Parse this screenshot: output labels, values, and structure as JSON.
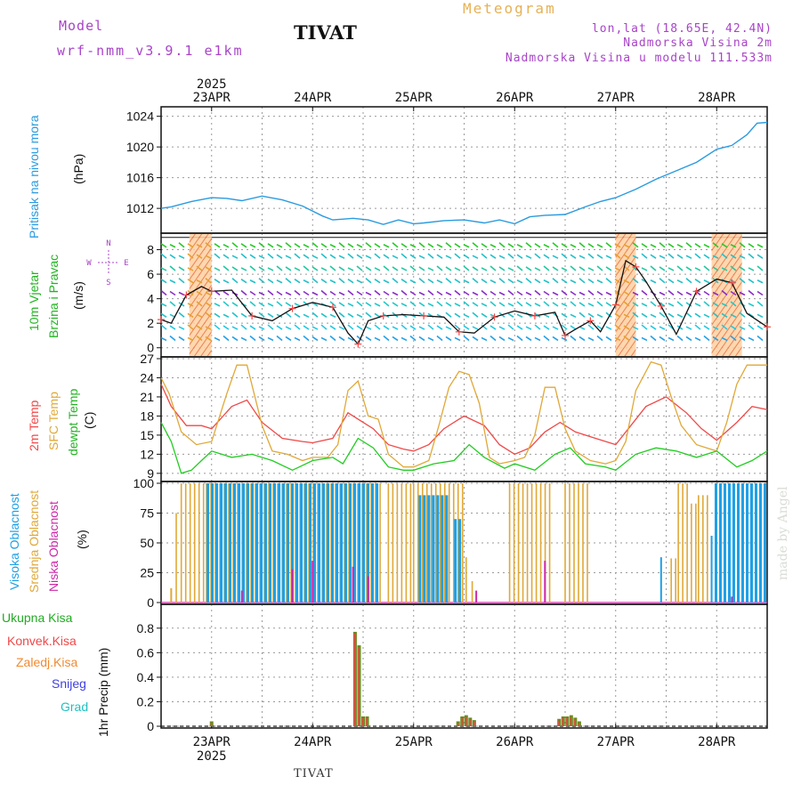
{
  "header": {
    "model_label": "Model",
    "model_name": "wrf-nmm_v3.9.1 e1km",
    "station": "TIVAT",
    "meteogram": "Meteogram",
    "lonlat": "lon,lat (18.65E, 42.4N)",
    "elevation": "Nadmorska Visina 2m",
    "model_elevation": "Nadmorska Visina u modelu 111.533m",
    "credit": "made by Angel",
    "footer_station": "TIVAT"
  },
  "colors": {
    "pressure": "#2a9be0",
    "wind_label": "#22b422",
    "t2m": "#f04848",
    "sfc": "#e0a838",
    "dewpt": "#22cc22",
    "cloud_high": "#1ea0e6",
    "cloud_mid": "#e0a838",
    "cloud_low": "#cc2aa8",
    "precip_total": "#22aa22",
    "precip_conv": "#f04848",
    "precip_frz": "#f08a30",
    "snow": "#4040e0",
    "grad": "#20c0c0",
    "compass": "#a844c8"
  },
  "chart_data": [
    {
      "type": "line",
      "panel": "pressure",
      "ylabel": "Pritisak na nivou mora",
      "unit": "(hPa)",
      "ylim": [
        1009,
        1025
      ],
      "yticks": [
        1012,
        1016,
        1020,
        1024
      ],
      "x_days": [
        22.5,
        23.0,
        23.5,
        24.0,
        24.5,
        25.0,
        25.5,
        26.0,
        26.5,
        27.0,
        27.5,
        28.0,
        28.5
      ],
      "x_labels": [
        "23APR",
        "24APR",
        "25APR",
        "26APR",
        "27APR",
        "28APR"
      ],
      "year": "2025",
      "x": [
        22.5,
        22.6,
        22.8,
        23.0,
        23.15,
        23.3,
        23.5,
        23.7,
        23.9,
        24.1,
        24.2,
        24.4,
        24.55,
        24.7,
        24.85,
        25.0,
        25.1,
        25.3,
        25.5,
        25.7,
        25.85,
        26.0,
        26.15,
        26.3,
        26.5,
        26.7,
        26.85,
        27.0,
        27.2,
        27.4,
        27.6,
        27.8,
        28.0,
        28.15,
        28.3,
        28.4,
        28.5
      ],
      "values": [
        1012.0,
        1012.2,
        1012.9,
        1013.4,
        1013.3,
        1013.0,
        1013.6,
        1013.1,
        1012.3,
        1011.0,
        1010.5,
        1010.7,
        1010.5,
        1009.9,
        1010.5,
        1010.0,
        1010.1,
        1010.4,
        1010.5,
        1010.1,
        1010.5,
        1010.0,
        1010.9,
        1011.1,
        1011.2,
        1012.2,
        1012.9,
        1013.4,
        1014.5,
        1015.8,
        1016.9,
        1018.0,
        1019.7,
        1020.2,
        1021.6,
        1023.1,
        1023.2
      ]
    },
    {
      "type": "line",
      "panel": "wind",
      "ylabel": "10m Vjetar",
      "ylabel2": "Brzina i Pravac",
      "unit": "(m/s)",
      "compass": [
        "N",
        "E",
        "W",
        "S"
      ],
      "ylim": [
        -0.6,
        9.2
      ],
      "yticks": [
        0,
        2,
        4,
        6,
        8
      ],
      "x": [
        22.5,
        22.6,
        22.75,
        22.9,
        23.0,
        23.2,
        23.4,
        23.6,
        23.8,
        24.0,
        24.2,
        24.35,
        24.45,
        24.55,
        24.7,
        24.9,
        25.1,
        25.3,
        25.45,
        25.6,
        25.8,
        26.0,
        26.2,
        26.4,
        26.5,
        26.6,
        26.75,
        26.85,
        27.0,
        27.1,
        27.2,
        27.3,
        27.45,
        27.6,
        27.8,
        28.0,
        28.15,
        28.3,
        28.5
      ],
      "values": [
        2.3,
        2.0,
        4.3,
        5.0,
        4.6,
        4.7,
        2.6,
        2.2,
        3.2,
        3.7,
        3.3,
        1.2,
        0.3,
        2.2,
        2.6,
        2.7,
        2.6,
        2.5,
        1.3,
        1.2,
        2.5,
        3.0,
        2.6,
        2.9,
        1.0,
        1.5,
        2.2,
        1.3,
        3.5,
        7.1,
        6.6,
        5.4,
        3.4,
        1.1,
        4.6,
        5.6,
        5.3,
        2.8,
        1.7
      ],
      "wind_zones_days": [
        [
          22.78,
          23.0
        ],
        [
          27.0,
          27.2
        ],
        [
          27.95,
          28.25
        ]
      ]
    },
    {
      "type": "line",
      "panel": "temperature",
      "ylabel": "2m Temp",
      "ylabel2": "SFC Temp",
      "ylabel3": "dewpt Temp",
      "unit": "(C)",
      "ylim": [
        8,
        27
      ],
      "yticks": [
        9,
        12,
        15,
        18,
        21,
        24,
        27
      ],
      "series": [
        {
          "name": "2m Temp",
          "x": [
            22.5,
            22.6,
            22.75,
            22.9,
            23.0,
            23.2,
            23.35,
            23.5,
            23.7,
            23.9,
            24.0,
            24.2,
            24.35,
            24.5,
            24.6,
            24.75,
            24.9,
            25.0,
            25.15,
            25.3,
            25.5,
            25.7,
            25.85,
            26.0,
            26.15,
            26.3,
            26.45,
            26.6,
            26.8,
            27.0,
            27.15,
            27.3,
            27.5,
            27.7,
            27.85,
            28.0,
            28.2,
            28.35,
            28.5
          ],
          "values": [
            23.0,
            19.5,
            16.5,
            16.5,
            16.0,
            19.5,
            20.5,
            17.0,
            14.5,
            14.0,
            13.8,
            14.5,
            18.5,
            17.0,
            16.0,
            13.5,
            12.8,
            12.5,
            13.5,
            16.0,
            18.0,
            16.5,
            13.5,
            12.0,
            13.0,
            15.5,
            17.0,
            15.5,
            14.5,
            13.5,
            16.5,
            19.5,
            21.0,
            18.5,
            16.0,
            14.2,
            17.0,
            19.5,
            19.0
          ]
        },
        {
          "name": "SFC Temp",
          "x": [
            22.5,
            22.58,
            22.7,
            22.85,
            23.0,
            23.15,
            23.25,
            23.35,
            23.5,
            23.6,
            23.75,
            23.9,
            24.0,
            24.15,
            24.25,
            24.35,
            24.45,
            24.55,
            24.65,
            24.75,
            24.9,
            25.0,
            25.15,
            25.25,
            25.35,
            25.45,
            25.55,
            25.65,
            25.75,
            25.85,
            26.0,
            26.1,
            26.2,
            26.3,
            26.4,
            26.5,
            26.6,
            26.75,
            26.9,
            27.0,
            27.1,
            27.2,
            27.35,
            27.45,
            27.55,
            27.65,
            27.8,
            27.9,
            28.0,
            28.1,
            28.2,
            28.3,
            28.45,
            28.5
          ],
          "values": [
            24.0,
            21.5,
            15.5,
            13.5,
            14.0,
            21.5,
            26.0,
            26.0,
            16.5,
            12.5,
            12.0,
            11.0,
            11.5,
            11.5,
            13.5,
            22.0,
            23.5,
            18.0,
            17.5,
            12.0,
            10.0,
            10.0,
            11.0,
            16.5,
            22.5,
            25.0,
            24.5,
            20.0,
            11.5,
            10.5,
            11.0,
            11.5,
            15.0,
            22.5,
            22.5,
            16.0,
            12.5,
            11.0,
            10.5,
            11.0,
            14.0,
            22.0,
            26.5,
            26.0,
            21.0,
            16.5,
            13.5,
            13.0,
            12.5,
            17.0,
            23.0,
            26.0,
            26.0,
            26.0
          ]
        },
        {
          "name": "dewpt Temp",
          "x": [
            22.5,
            22.6,
            22.7,
            22.8,
            22.9,
            23.0,
            23.2,
            23.4,
            23.6,
            23.8,
            24.0,
            24.2,
            24.3,
            24.45,
            24.6,
            24.75,
            24.9,
            25.0,
            25.2,
            25.4,
            25.55,
            25.7,
            25.9,
            26.0,
            26.2,
            26.4,
            26.55,
            26.7,
            26.9,
            27.0,
            27.2,
            27.4,
            27.6,
            27.8,
            28.0,
            28.2,
            28.35,
            28.5
          ],
          "values": [
            17.0,
            14.0,
            9.0,
            9.5,
            11.0,
            12.5,
            11.5,
            12.0,
            11.0,
            9.5,
            11.0,
            11.5,
            10.5,
            14.5,
            13.0,
            10.0,
            9.5,
            9.5,
            10.5,
            11.0,
            13.5,
            11.5,
            9.8,
            10.5,
            9.5,
            12.0,
            13.0,
            10.5,
            10.0,
            9.5,
            12.0,
            13.0,
            12.5,
            11.5,
            12.5,
            10.0,
            11.0,
            12.5
          ]
        }
      ]
    },
    {
      "type": "bar",
      "panel": "clouds",
      "ylabel": "Visoka Oblacnost",
      "ylabel2": "Srednja Oblacnost",
      "ylabel3": "Niska Oblacnost",
      "unit": "(%)",
      "ylim": [
        0,
        100
      ],
      "yticks": [
        0,
        25,
        50,
        75,
        100
      ],
      "series": [
        {
          "name": "Visoka Oblacnost",
          "segments": [
            {
              "from": 22.95,
              "to": 24.65,
              "value": 100
            },
            {
              "from": 25.05,
              "to": 25.35,
              "value": 90
            },
            {
              "from": 25.4,
              "to": 25.45,
              "value": 70
            },
            {
              "from": 27.45,
              "to": 27.47,
              "value": 38
            },
            {
              "from": 27.95,
              "to": 27.97,
              "value": 56
            },
            {
              "from": 27.98,
              "to": 28.5,
              "value": 100
            }
          ]
        },
        {
          "name": "Srednja Oblacnost",
          "segments": [
            {
              "from": 22.5,
              "to": 22.55,
              "value": 0
            },
            {
              "from": 22.6,
              "to": 22.62,
              "value": 12
            },
            {
              "from": 22.65,
              "to": 22.68,
              "value": 75
            },
            {
              "from": 22.7,
              "to": 22.95,
              "value": 100
            },
            {
              "from": 22.95,
              "to": 24.7,
              "value": 100
            },
            {
              "from": 24.75,
              "to": 25.0,
              "value": 100
            },
            {
              "from": 25.0,
              "to": 25.5,
              "value": 100
            },
            {
              "from": 25.52,
              "to": 25.55,
              "value": 38
            },
            {
              "from": 25.58,
              "to": 25.62,
              "value": 18
            },
            {
              "from": 25.95,
              "to": 26.35,
              "value": 100
            },
            {
              "from": 26.5,
              "to": 26.75,
              "value": 100
            },
            {
              "from": 27.55,
              "to": 27.6,
              "value": 37
            },
            {
              "from": 27.62,
              "to": 27.72,
              "value": 100
            },
            {
              "from": 27.75,
              "to": 27.8,
              "value": 83
            },
            {
              "from": 27.82,
              "to": 27.92,
              "value": 90
            }
          ]
        },
        {
          "name": "Niska Oblacnost",
          "segments": [
            {
              "from": 23.3,
              "to": 23.32,
              "value": 10
            },
            {
              "from": 23.8,
              "to": 23.82,
              "value": 28
            },
            {
              "from": 24.0,
              "to": 24.02,
              "value": 35
            },
            {
              "from": 24.4,
              "to": 24.42,
              "value": 30
            },
            {
              "from": 24.55,
              "to": 24.57,
              "value": 22
            },
            {
              "from": 25.62,
              "to": 25.64,
              "value": 10
            },
            {
              "from": 26.3,
              "to": 26.32,
              "value": 35
            },
            {
              "from": 28.15,
              "to": 28.17,
              "value": 5
            }
          ]
        }
      ]
    },
    {
      "type": "bar",
      "panel": "precip",
      "ylabel": "1hr Precip (mm)",
      "legend": [
        "Ukupna Kisa",
        "Konvek.Kisa",
        "Zaledj.Kisa",
        "Snijeg",
        "Grad"
      ],
      "ylim": [
        0,
        0.98
      ],
      "yticks": [
        0,
        0.2,
        0.4,
        0.6,
        0.8
      ],
      "x": [
        23.0,
        24.42,
        24.46,
        24.5,
        24.54,
        25.44,
        25.48,
        25.52,
        25.56,
        25.6,
        26.44,
        26.48,
        26.52,
        26.56,
        26.6,
        26.64
      ],
      "values": [
        0.04,
        0.77,
        0.66,
        0.08,
        0.08,
        0.04,
        0.08,
        0.09,
        0.07,
        0.05,
        0.06,
        0.08,
        0.08,
        0.09,
        0.07,
        0.04
      ]
    }
  ]
}
